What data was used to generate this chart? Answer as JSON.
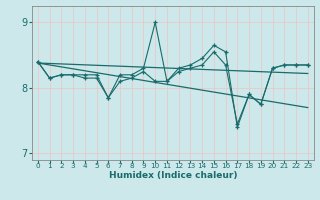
{
  "xlabel": "Humidex (Indice chaleur)",
  "xlim": [
    -0.5,
    23.5
  ],
  "ylim": [
    6.9,
    9.25
  ],
  "yticks": [
    7,
    8,
    9
  ],
  "xticks": [
    0,
    1,
    2,
    3,
    4,
    5,
    6,
    7,
    8,
    9,
    10,
    11,
    12,
    13,
    14,
    15,
    16,
    17,
    18,
    19,
    20,
    21,
    22,
    23
  ],
  "bg_color": "#cce8eb",
  "grid_color": "#e8c8c8",
  "line_color": "#1a6b6b",
  "series1_x": [
    0,
    1,
    2,
    3,
    4,
    5,
    6,
    7,
    8,
    9,
    10,
    11,
    12,
    13,
    14,
    15,
    16,
    17,
    18,
    19,
    20,
    21,
    22,
    23
  ],
  "series1_y": [
    8.4,
    8.15,
    8.2,
    8.2,
    8.2,
    8.2,
    7.85,
    8.2,
    8.2,
    8.3,
    9.0,
    8.1,
    8.3,
    8.35,
    8.45,
    8.65,
    8.55,
    7.4,
    7.9,
    7.75,
    8.3,
    8.35,
    8.35,
    8.35
  ],
  "series2_x": [
    0,
    1,
    2,
    3,
    4,
    5,
    6,
    7,
    8,
    9,
    10,
    11,
    12,
    13,
    14,
    15,
    16,
    17,
    18,
    19,
    20,
    21,
    22,
    23
  ],
  "series2_y": [
    8.4,
    8.15,
    8.2,
    8.2,
    8.15,
    8.15,
    7.85,
    8.1,
    8.15,
    8.25,
    8.1,
    8.1,
    8.25,
    8.3,
    8.35,
    8.55,
    8.35,
    7.45,
    7.9,
    7.75,
    8.3,
    8.35,
    8.35,
    8.35
  ],
  "trend1_x": [
    0,
    23
  ],
  "trend1_y": [
    8.38,
    8.22
  ],
  "trend2_x": [
    0,
    23
  ],
  "trend2_y": [
    8.38,
    7.7
  ]
}
